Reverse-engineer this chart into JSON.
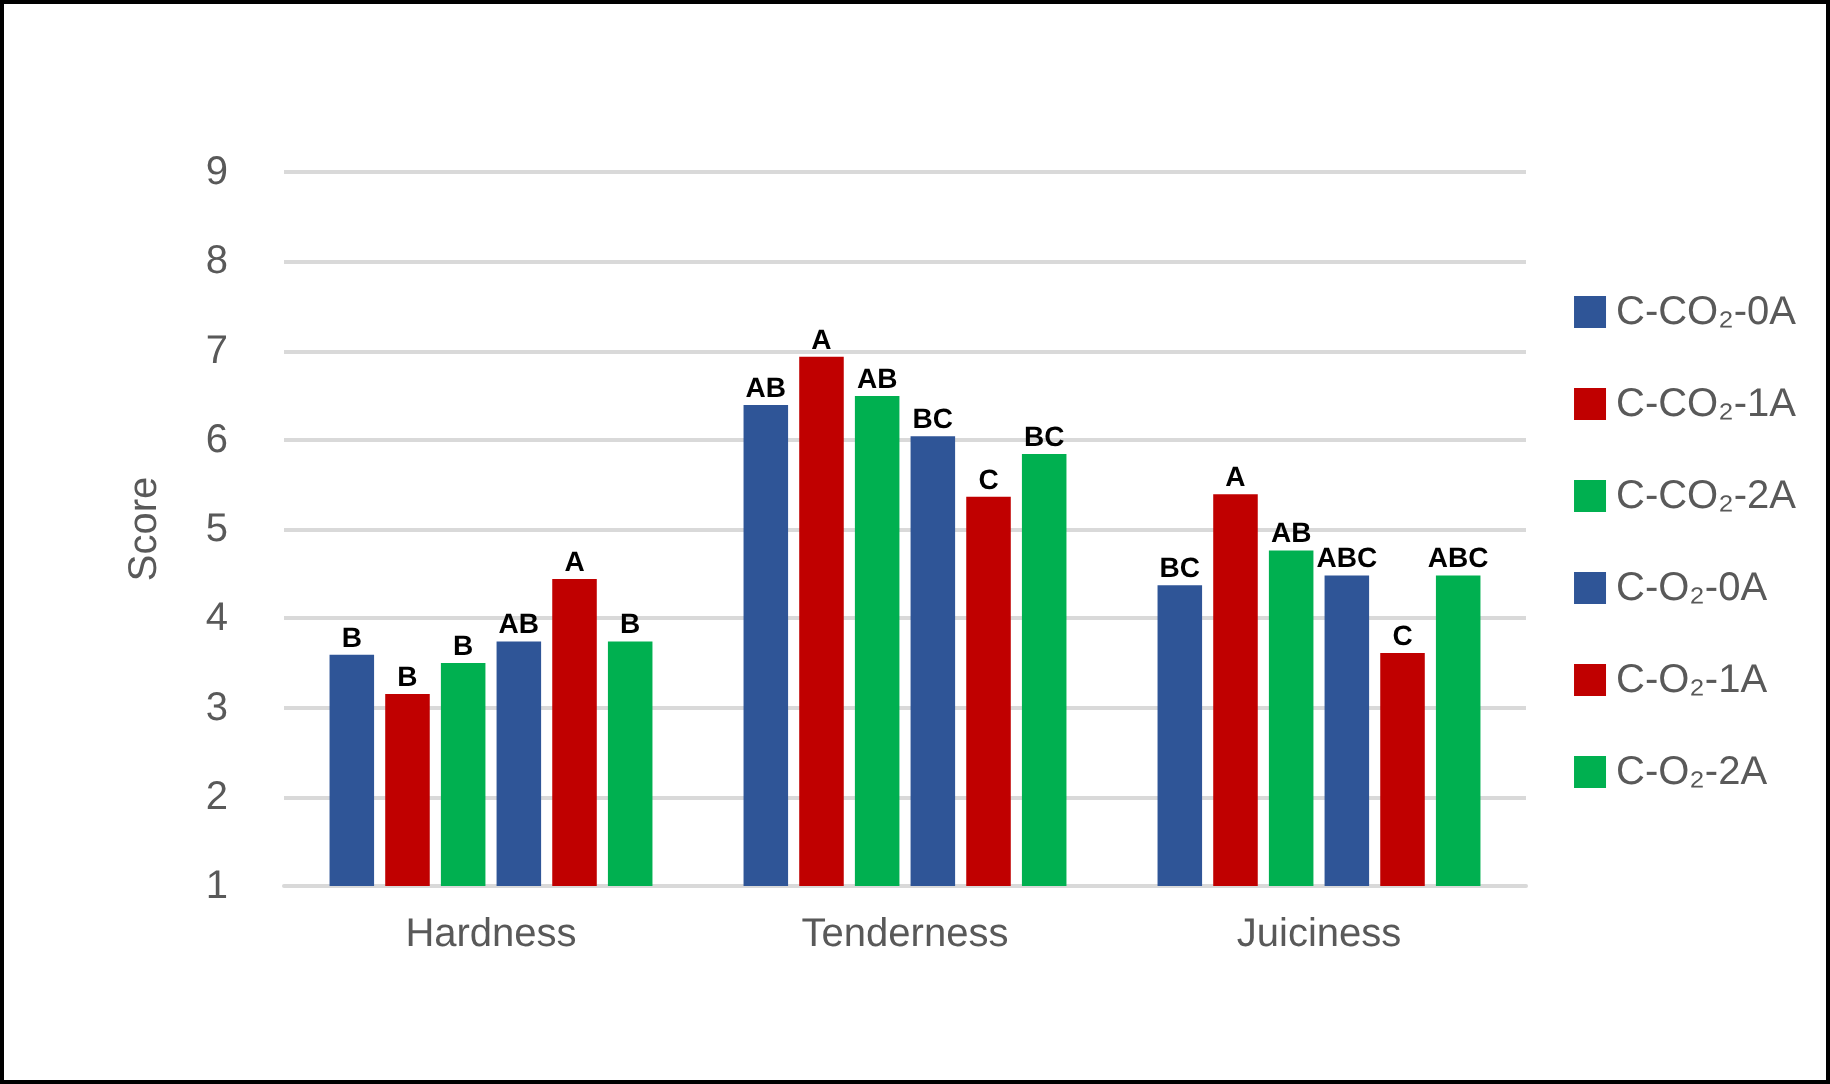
{
  "chart_data": {
    "type": "bar",
    "ylabel": "Score",
    "categories": [
      "Hardness",
      "Tenderness",
      "Juiciness"
    ],
    "series": [
      {
        "name": "C-CO₂-0A",
        "color": "#2f5597",
        "values": [
          3.59,
          6.39,
          4.37
        ],
        "value_labels": [
          "B",
          "AB",
          "BC"
        ]
      },
      {
        "name": "C-CO₂-1A",
        "color": "#c00000",
        "values": [
          3.15,
          6.93,
          5.39
        ],
        "value_labels": [
          "B",
          "A",
          "A"
        ]
      },
      {
        "name": "C-CO₂-2A",
        "color": "#00b050",
        "values": [
          3.5,
          6.49,
          4.76
        ],
        "value_labels": [
          "B",
          "AB",
          "AB"
        ]
      },
      {
        "name": "C-O₂-0A",
        "color": "#2f5597",
        "values": [
          3.74,
          6.04,
          4.48
        ],
        "value_labels": [
          "AB",
          "BC",
          "ABC"
        ]
      },
      {
        "name": "C-O₂-1A",
        "color": "#c00000",
        "values": [
          4.44,
          5.36,
          3.61
        ],
        "value_labels": [
          "A",
          "C",
          "C"
        ]
      },
      {
        "name": "C-O₂-2A",
        "color": "#00b050",
        "values": [
          3.74,
          5.84,
          4.48
        ],
        "value_labels": [
          "B",
          "BC",
          "ABC"
        ]
      }
    ],
    "ylim": [
      1,
      9
    ],
    "yticks": [
      1,
      2,
      3,
      4,
      5,
      6,
      7,
      8,
      9
    ],
    "grid": "y",
    "legend": "right"
  }
}
